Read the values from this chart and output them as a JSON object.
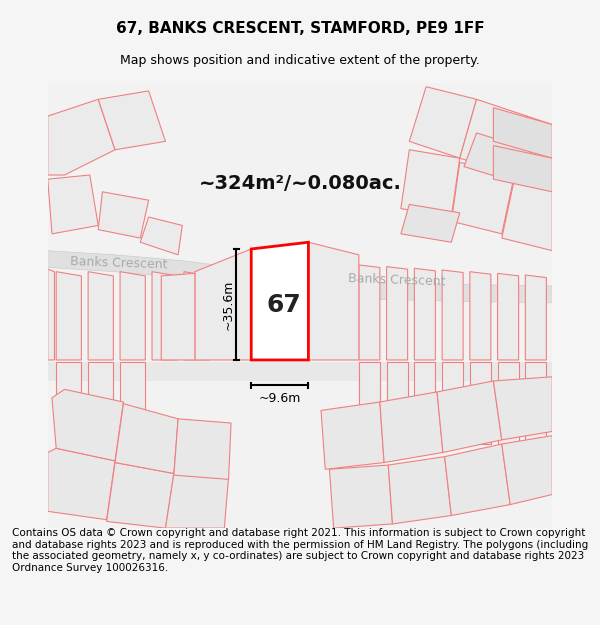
{
  "title": "67, BANKS CRESCENT, STAMFORD, PE9 1FF",
  "subtitle": "Map shows position and indicative extent of the property.",
  "area_text": "~324m²/~0.080ac.",
  "height_label": "~35.6m",
  "width_label": "~9.6m",
  "number_label": "67",
  "street_name": "Banks Crescent",
  "footer": "Contains OS data © Crown copyright and database right 2021. This information is subject to Crown copyright and database rights 2023 and is reproduced with the permission of HM Land Registry. The polygons (including the associated geometry, namely x, y co-ordinates) are subject to Crown copyright and database rights 2023 Ordnance Survey 100026316.",
  "bg_color": "#f5f5f5",
  "map_bg": "#f0f0f0",
  "plot_bg": "#ffffff",
  "road_fill": "#e8e8e8",
  "property_line_color": "#ff0000",
  "neighbor_line_color": "#f08080",
  "neighbor_fill": "#e8e8e8",
  "dim_color": "#000000",
  "title_fontsize": 11,
  "subtitle_fontsize": 9,
  "footer_fontsize": 7.5
}
